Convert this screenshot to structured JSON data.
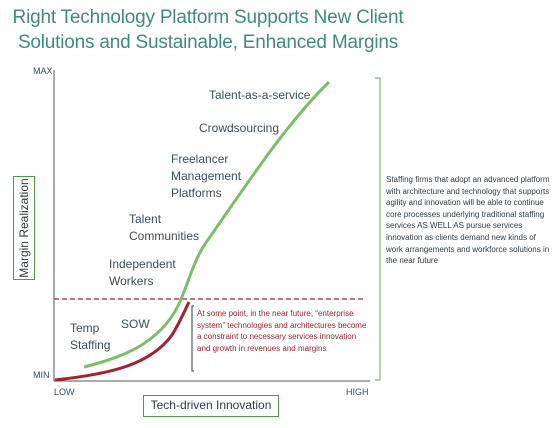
{
  "title": [
    "Right Technology Platform Supports New Client",
    "Solutions and Sustainable, Enhanced Margins"
  ],
  "axes": {
    "y_max": "MAX",
    "y_min": "MIN",
    "x_low": "LOW",
    "x_high": "HIGH",
    "y_label": "Margin Realization",
    "x_label": "Tech-driven Innovation"
  },
  "stages": {
    "temp_staffing": [
      "Temp",
      "Staffing"
    ],
    "sow": "SOW",
    "independent_workers": [
      "Independent",
      "Workers"
    ],
    "talent_communities": [
      "Talent",
      "Communities"
    ],
    "freelancer_platforms": [
      "Freelancer",
      "Management",
      "Platforms"
    ],
    "crowdsourcing": "Crowdsourcing",
    "talent_as_a_service": "Talent-as-a-service"
  },
  "constraint_note": "At some point, in the near future, “enterprise system” technologies and architectures become a constraint to necessary services innovation and growth in revenues and margins",
  "side_note": "Staffing firms that adopt an advanced platform with architecture and technology that supports agility and innovation will be able to continue core processes underlying traditional staffing services AS WELL AS pursue services innovation as clients demand new kinds of work arrangements and workforce solutions in the near future",
  "colors": {
    "title": "#3f8c7d",
    "green_curve": "#7cbd6b",
    "red_curve": "#a3222e",
    "frame_green": "#4f9b45",
    "axis": "#555555"
  }
}
